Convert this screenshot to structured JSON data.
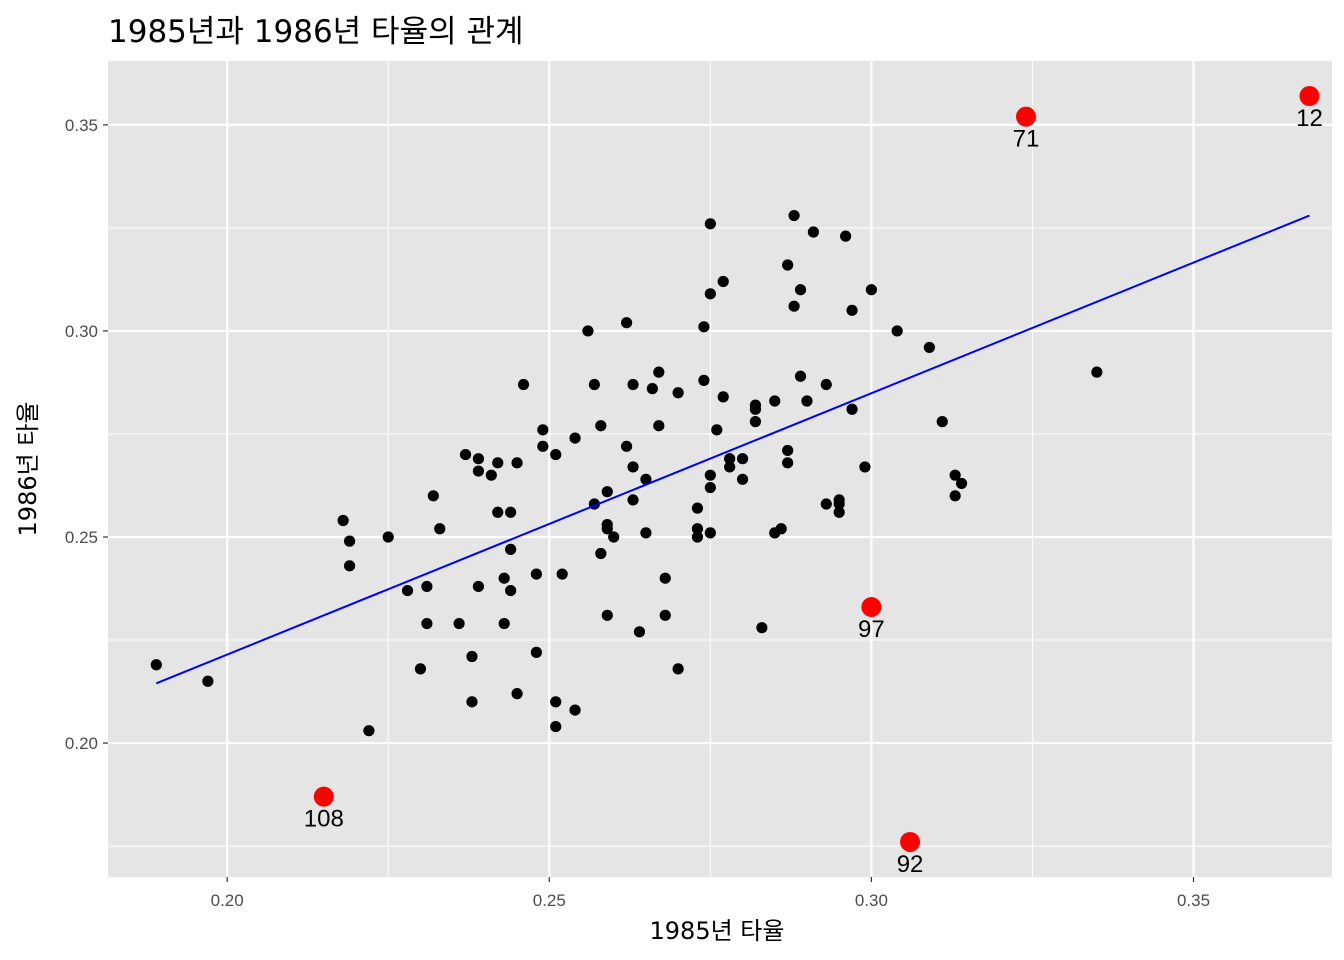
{
  "chart_data": {
    "type": "scatter",
    "title": "1985년과 1986년 타율의 관계",
    "xlabel": "1985년 타율",
    "ylabel": "1986년 타율",
    "xlim": [
      0.1815,
      0.3715
    ],
    "ylim": [
      0.1675,
      0.3655
    ],
    "x_ticks": [
      0.2,
      0.25,
      0.3,
      0.35
    ],
    "x_tick_labels": [
      "0.20",
      "0.25",
      "0.30",
      "0.35"
    ],
    "y_ticks": [
      0.2,
      0.25,
      0.3,
      0.35
    ],
    "y_tick_labels": [
      "0.20",
      "0.25",
      "0.30",
      "0.35"
    ],
    "grid": true,
    "points": [
      [
        0.189,
        0.219
      ],
      [
        0.197,
        0.215
      ],
      [
        0.218,
        0.254
      ],
      [
        0.219,
        0.249
      ],
      [
        0.219,
        0.243
      ],
      [
        0.222,
        0.203
      ],
      [
        0.225,
        0.25
      ],
      [
        0.228,
        0.237
      ],
      [
        0.23,
        0.218
      ],
      [
        0.231,
        0.238
      ],
      [
        0.231,
        0.229
      ],
      [
        0.232,
        0.26
      ],
      [
        0.233,
        0.252
      ],
      [
        0.236,
        0.229
      ],
      [
        0.237,
        0.27
      ],
      [
        0.238,
        0.221
      ],
      [
        0.238,
        0.21
      ],
      [
        0.239,
        0.269
      ],
      [
        0.239,
        0.266
      ],
      [
        0.239,
        0.238
      ],
      [
        0.241,
        0.265
      ],
      [
        0.242,
        0.268
      ],
      [
        0.242,
        0.256
      ],
      [
        0.243,
        0.24
      ],
      [
        0.243,
        0.229
      ],
      [
        0.244,
        0.256
      ],
      [
        0.244,
        0.247
      ],
      [
        0.244,
        0.237
      ],
      [
        0.245,
        0.268
      ],
      [
        0.245,
        0.212
      ],
      [
        0.246,
        0.287
      ],
      [
        0.248,
        0.241
      ],
      [
        0.248,
        0.222
      ],
      [
        0.249,
        0.276
      ],
      [
        0.249,
        0.272
      ],
      [
        0.251,
        0.27
      ],
      [
        0.251,
        0.21
      ],
      [
        0.251,
        0.204
      ],
      [
        0.252,
        0.241
      ],
      [
        0.254,
        0.274
      ],
      [
        0.254,
        0.208
      ],
      [
        0.256,
        0.3
      ],
      [
        0.257,
        0.287
      ],
      [
        0.257,
        0.258
      ],
      [
        0.258,
        0.277
      ],
      [
        0.258,
        0.246
      ],
      [
        0.259,
        0.261
      ],
      [
        0.259,
        0.253
      ],
      [
        0.259,
        0.252
      ],
      [
        0.259,
        0.231
      ],
      [
        0.26,
        0.25
      ],
      [
        0.262,
        0.302
      ],
      [
        0.262,
        0.272
      ],
      [
        0.263,
        0.287
      ],
      [
        0.263,
        0.267
      ],
      [
        0.263,
        0.259
      ],
      [
        0.264,
        0.227
      ],
      [
        0.265,
        0.264
      ],
      [
        0.265,
        0.251
      ],
      [
        0.266,
        0.286
      ],
      [
        0.267,
        0.29
      ],
      [
        0.267,
        0.277
      ],
      [
        0.268,
        0.24
      ],
      [
        0.268,
        0.231
      ],
      [
        0.27,
        0.285
      ],
      [
        0.27,
        0.218
      ],
      [
        0.273,
        0.257
      ],
      [
        0.273,
        0.252
      ],
      [
        0.273,
        0.25
      ],
      [
        0.274,
        0.301
      ],
      [
        0.274,
        0.288
      ],
      [
        0.275,
        0.326
      ],
      [
        0.275,
        0.309
      ],
      [
        0.275,
        0.265
      ],
      [
        0.275,
        0.262
      ],
      [
        0.275,
        0.251
      ],
      [
        0.276,
        0.276
      ],
      [
        0.277,
        0.312
      ],
      [
        0.277,
        0.284
      ],
      [
        0.278,
        0.269
      ],
      [
        0.278,
        0.267
      ],
      [
        0.28,
        0.269
      ],
      [
        0.28,
        0.264
      ],
      [
        0.282,
        0.282
      ],
      [
        0.282,
        0.281
      ],
      [
        0.282,
        0.278
      ],
      [
        0.283,
        0.228
      ],
      [
        0.285,
        0.283
      ],
      [
        0.285,
        0.251
      ],
      [
        0.286,
        0.252
      ],
      [
        0.287,
        0.316
      ],
      [
        0.287,
        0.271
      ],
      [
        0.287,
        0.268
      ],
      [
        0.288,
        0.328
      ],
      [
        0.288,
        0.306
      ],
      [
        0.289,
        0.31
      ],
      [
        0.289,
        0.289
      ],
      [
        0.29,
        0.283
      ],
      [
        0.291,
        0.324
      ],
      [
        0.293,
        0.287
      ],
      [
        0.293,
        0.258
      ],
      [
        0.295,
        0.259
      ],
      [
        0.295,
        0.258
      ],
      [
        0.295,
        0.256
      ],
      [
        0.296,
        0.323
      ],
      [
        0.297,
        0.305
      ],
      [
        0.297,
        0.281
      ],
      [
        0.299,
        0.267
      ],
      [
        0.3,
        0.31
      ],
      [
        0.304,
        0.3
      ],
      [
        0.309,
        0.296
      ],
      [
        0.311,
        0.278
      ],
      [
        0.313,
        0.265
      ],
      [
        0.313,
        0.26
      ],
      [
        0.314,
        0.263
      ],
      [
        0.335,
        0.29
      ]
    ],
    "highlighted": [
      {
        "label": "71",
        "x": 0.324,
        "y": 0.352
      },
      {
        "label": "12",
        "x": 0.368,
        "y": 0.357
      },
      {
        "label": "97",
        "x": 0.3,
        "y": 0.233
      },
      {
        "label": "108",
        "x": 0.215,
        "y": 0.187
      },
      {
        "label": "92",
        "x": 0.306,
        "y": 0.176
      }
    ],
    "fit_line": {
      "x": [
        0.189,
        0.368
      ],
      "y": [
        0.2145,
        0.328
      ]
    },
    "colors": {
      "panel": "#e5e5e5",
      "grid": "#ffffff",
      "points": "#000000",
      "highlight": "#ff0000",
      "fit_line": "#0000ff"
    }
  }
}
